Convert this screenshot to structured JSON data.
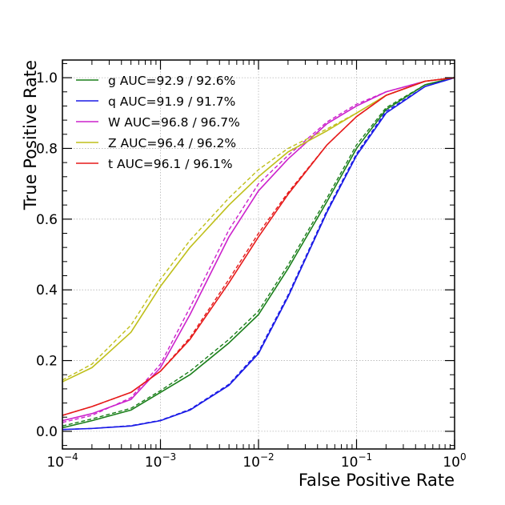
{
  "chart_data": {
    "type": "line",
    "xlabel": "False Positive Rate",
    "ylabel": "True Positive Rate",
    "xscale": "log",
    "xlim": [
      0.0001,
      1
    ],
    "ylim": [
      -0.05,
      1.05
    ],
    "grid": true,
    "legend_position": "top-left",
    "x_ticks": [
      {
        "value": 0.0001,
        "base": "10",
        "exp": "−4"
      },
      {
        "value": 0.001,
        "base": "10",
        "exp": "−3"
      },
      {
        "value": 0.01,
        "base": "10",
        "exp": "−2"
      },
      {
        "value": 0.1,
        "base": "10",
        "exp": "−1"
      },
      {
        "value": 1,
        "base": "10",
        "exp": "0"
      }
    ],
    "y_ticks": [
      {
        "value": 0.0,
        "label": "0.0"
      },
      {
        "value": 0.2,
        "label": "0.2"
      },
      {
        "value": 0.4,
        "label": "0.4"
      },
      {
        "value": 0.6,
        "label": "0.6"
      },
      {
        "value": 0.8,
        "label": "0.8"
      },
      {
        "value": 1.0,
        "label": "1.0"
      }
    ],
    "series": [
      {
        "name": "g",
        "legend_label": "g   AUC=92.9 / 92.6%",
        "color": "#1a7f1a",
        "solid": [
          [
            0.0001,
            0.01
          ],
          [
            0.0002,
            0.03
          ],
          [
            0.0005,
            0.06
          ],
          [
            0.001,
            0.11
          ],
          [
            0.002,
            0.16
          ],
          [
            0.005,
            0.25
          ],
          [
            0.01,
            0.33
          ],
          [
            0.02,
            0.46
          ],
          [
            0.05,
            0.65
          ],
          [
            0.1,
            0.8
          ],
          [
            0.2,
            0.91
          ],
          [
            0.5,
            0.98
          ],
          [
            1,
            1.0
          ]
        ],
        "dashed": [
          [
            0.0001,
            0.015
          ],
          [
            0.0002,
            0.035
          ],
          [
            0.0005,
            0.065
          ],
          [
            0.001,
            0.115
          ],
          [
            0.002,
            0.17
          ],
          [
            0.005,
            0.26
          ],
          [
            0.01,
            0.34
          ],
          [
            0.02,
            0.47
          ],
          [
            0.05,
            0.66
          ],
          [
            0.1,
            0.81
          ],
          [
            0.2,
            0.915
          ],
          [
            0.5,
            0.98
          ],
          [
            1,
            1.0
          ]
        ]
      },
      {
        "name": "q",
        "legend_label": "q   AUC=91.9 / 91.7%",
        "color": "#1a1ae6",
        "solid": [
          [
            0.0001,
            0.005
          ],
          [
            0.0002,
            0.008
          ],
          [
            0.0005,
            0.015
          ],
          [
            0.001,
            0.03
          ],
          [
            0.002,
            0.06
          ],
          [
            0.005,
            0.13
          ],
          [
            0.01,
            0.22
          ],
          [
            0.02,
            0.38
          ],
          [
            0.05,
            0.62
          ],
          [
            0.1,
            0.78
          ],
          [
            0.2,
            0.9
          ],
          [
            0.5,
            0.975
          ],
          [
            1,
            1.0
          ]
        ],
        "dashed": [
          [
            0.0001,
            0.005
          ],
          [
            0.0002,
            0.008
          ],
          [
            0.0005,
            0.016
          ],
          [
            0.001,
            0.031
          ],
          [
            0.002,
            0.062
          ],
          [
            0.005,
            0.133
          ],
          [
            0.01,
            0.225
          ],
          [
            0.02,
            0.385
          ],
          [
            0.05,
            0.625
          ],
          [
            0.1,
            0.785
          ],
          [
            0.2,
            0.905
          ],
          [
            0.5,
            0.975
          ],
          [
            1,
            1.0
          ]
        ]
      },
      {
        "name": "W",
        "legend_label": "W AUC=96.8 / 96.7%",
        "color": "#cc22cc",
        "solid": [
          [
            0.0001,
            0.03
          ],
          [
            0.0002,
            0.05
          ],
          [
            0.0005,
            0.09
          ],
          [
            0.001,
            0.18
          ],
          [
            0.002,
            0.33
          ],
          [
            0.005,
            0.55
          ],
          [
            0.01,
            0.68
          ],
          [
            0.02,
            0.77
          ],
          [
            0.05,
            0.87
          ],
          [
            0.1,
            0.92
          ],
          [
            0.2,
            0.96
          ],
          [
            0.5,
            0.99
          ],
          [
            1,
            1.0
          ]
        ],
        "dashed": [
          [
            0.0001,
            0.025
          ],
          [
            0.0002,
            0.045
          ],
          [
            0.0005,
            0.095
          ],
          [
            0.001,
            0.19
          ],
          [
            0.002,
            0.35
          ],
          [
            0.005,
            0.57
          ],
          [
            0.01,
            0.7
          ],
          [
            0.02,
            0.78
          ],
          [
            0.05,
            0.875
          ],
          [
            0.1,
            0.925
          ],
          [
            0.2,
            0.96
          ],
          [
            0.5,
            0.99
          ],
          [
            1,
            1.0
          ]
        ]
      },
      {
        "name": "Z",
        "legend_label": "Z  AUC=96.4 / 96.2%",
        "color": "#bfbf1a",
        "solid": [
          [
            0.0001,
            0.14
          ],
          [
            0.0002,
            0.18
          ],
          [
            0.0005,
            0.28
          ],
          [
            0.001,
            0.41
          ],
          [
            0.002,
            0.52
          ],
          [
            0.005,
            0.64
          ],
          [
            0.01,
            0.72
          ],
          [
            0.02,
            0.79
          ],
          [
            0.05,
            0.85
          ],
          [
            0.1,
            0.9
          ],
          [
            0.2,
            0.95
          ],
          [
            0.5,
            0.99
          ],
          [
            1,
            1.0
          ]
        ],
        "dashed": [
          [
            0.0001,
            0.145
          ],
          [
            0.0002,
            0.19
          ],
          [
            0.0005,
            0.3
          ],
          [
            0.001,
            0.43
          ],
          [
            0.002,
            0.54
          ],
          [
            0.005,
            0.66
          ],
          [
            0.01,
            0.74
          ],
          [
            0.02,
            0.8
          ],
          [
            0.05,
            0.855
          ],
          [
            0.1,
            0.9
          ],
          [
            0.2,
            0.95
          ],
          [
            0.5,
            0.99
          ],
          [
            1,
            1.0
          ]
        ]
      },
      {
        "name": "t",
        "legend_label": "t   AUC=96.1 / 96.1%",
        "color": "#e61a1a",
        "solid": [
          [
            0.0001,
            0.045
          ],
          [
            0.0002,
            0.07
          ],
          [
            0.0005,
            0.11
          ],
          [
            0.001,
            0.17
          ],
          [
            0.002,
            0.26
          ],
          [
            0.005,
            0.42
          ],
          [
            0.01,
            0.55
          ],
          [
            0.02,
            0.67
          ],
          [
            0.05,
            0.81
          ],
          [
            0.1,
            0.89
          ],
          [
            0.2,
            0.95
          ],
          [
            0.5,
            0.99
          ],
          [
            1,
            1.0
          ]
        ],
        "dashed": [
          [
            0.0001,
            0.045
          ],
          [
            0.0002,
            0.07
          ],
          [
            0.0005,
            0.11
          ],
          [
            0.001,
            0.17
          ],
          [
            0.002,
            0.265
          ],
          [
            0.005,
            0.43
          ],
          [
            0.01,
            0.56
          ],
          [
            0.02,
            0.675
          ],
          [
            0.05,
            0.81
          ],
          [
            0.1,
            0.89
          ],
          [
            0.2,
            0.95
          ],
          [
            0.5,
            0.99
          ],
          [
            1,
            1.0
          ]
        ]
      }
    ]
  }
}
